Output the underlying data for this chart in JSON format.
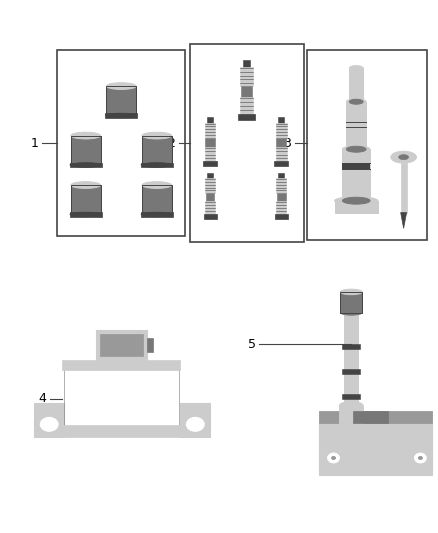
{
  "background_color": "#ffffff",
  "fig_width": 4.38,
  "fig_height": 5.33,
  "dpi": 100,
  "line_color": "#444444",
  "part_color": "#999999",
  "part_color_dark": "#444444",
  "part_color_light": "#cccccc",
  "part_color_mid": "#777777"
}
